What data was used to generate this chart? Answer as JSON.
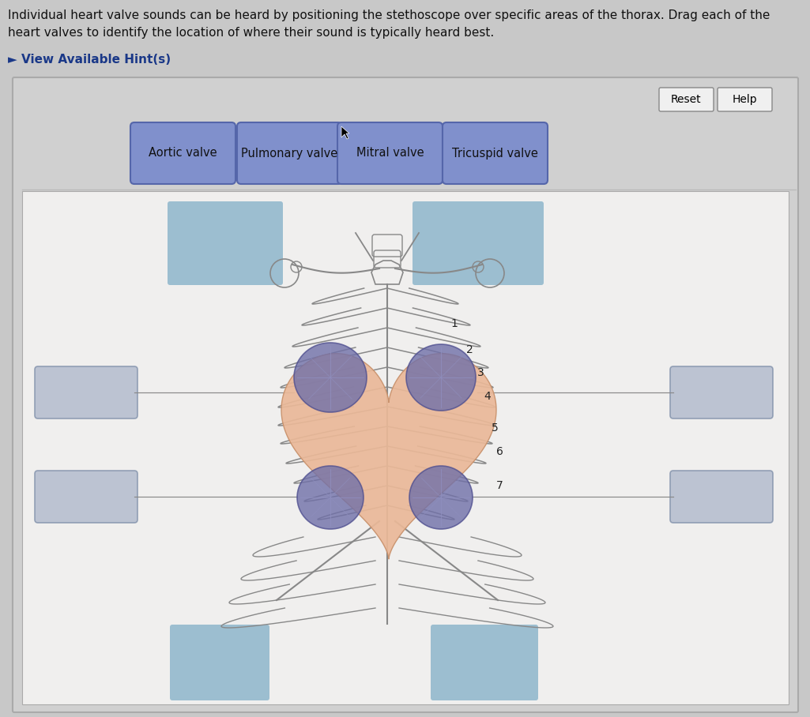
{
  "title_line1": "Individual heart valve sounds can be heard by positioning the stethoscope over specific areas of the thorax. Drag each of the",
  "title_line2": "heart valves to identify the location of where their sound is typically heard best.",
  "hint_text": "► View Available Hint(s)",
  "buttons": [
    "Reset",
    "Help"
  ],
  "valve_labels": [
    "Aortic valve",
    "Pulmonary valve",
    "Mitral valve",
    "Tricuspid valve"
  ],
  "valve_box_color": "#8090cc",
  "valve_box_edge": "#5566aa",
  "bg_outer": "#c8c8c8",
  "bg_panel": "#d0d0d0",
  "bg_inner": "#f0efee",
  "blue_region": "#91b8cc",
  "drop_box_color": "#b0b8cc",
  "drop_box_edge": "#8090aa",
  "heart_fill": "#eab898",
  "heart_edge": "#c8906a",
  "valve_circle_fill": "#7070a8",
  "valve_circle_edge": "#505090",
  "rib_color": "#888888",
  "sternum_color": "#888888",
  "number_color": "#222222",
  "line_color": "#888888",
  "button_bg": "#f0f0f0",
  "button_edge": "#888888"
}
